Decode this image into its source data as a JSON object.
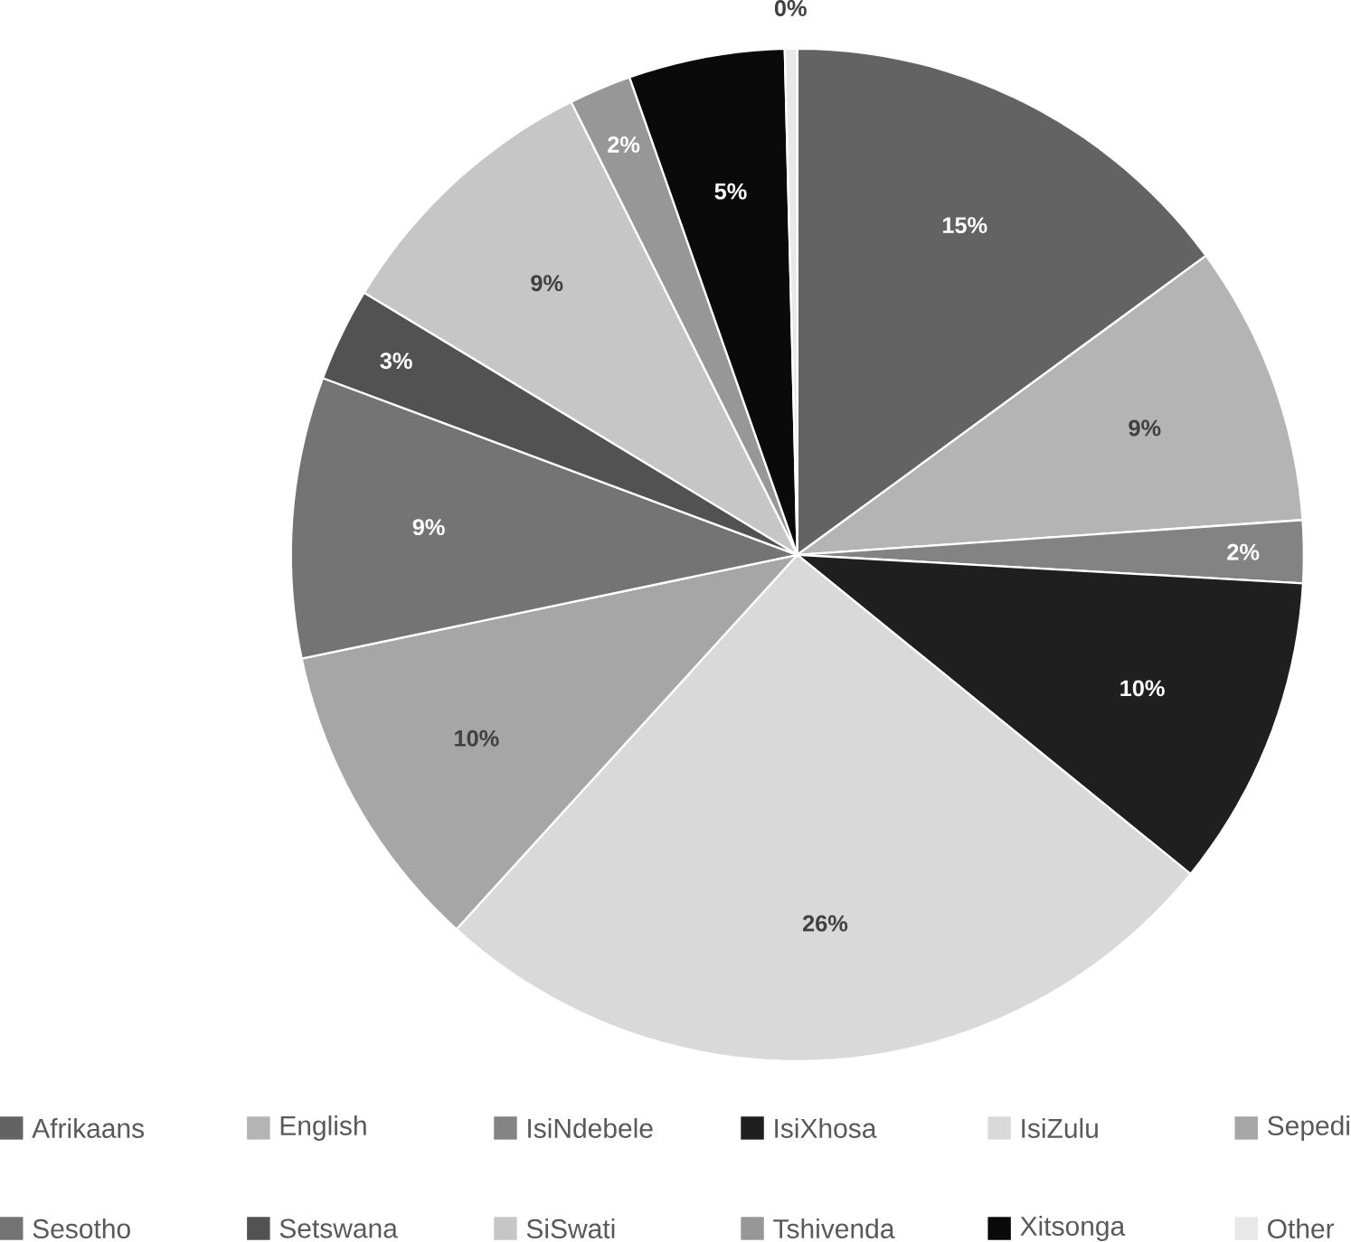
{
  "chart_data": {
    "type": "pie",
    "categories": [
      "Afrikaans",
      "English",
      "IsiNdebele",
      "IsiXhosa",
      "IsiZulu",
      "Sepedi",
      "Sesotho",
      "Setswana",
      "SiSwati",
      "Tshivenda",
      "Xitsonga",
      "Other"
    ],
    "values": [
      15,
      9,
      2,
      10,
      26,
      10,
      9,
      3,
      9,
      2,
      5,
      0.4
    ],
    "value_labels": [
      "15%",
      "9%",
      "2%",
      "10%",
      "26%",
      "10%",
      "9%",
      "3%",
      "9%",
      "2%",
      "5%",
      "0%"
    ],
    "colors": [
      "#636363",
      "#b4b4b4",
      "#838383",
      "#1f1f1f",
      "#d9d9d9",
      "#a6a6a6",
      "#747474",
      "#525252",
      "#c6c6c6",
      "#979797",
      "#0a0a0a",
      "#e8e8e8"
    ],
    "legend": "bottom"
  }
}
